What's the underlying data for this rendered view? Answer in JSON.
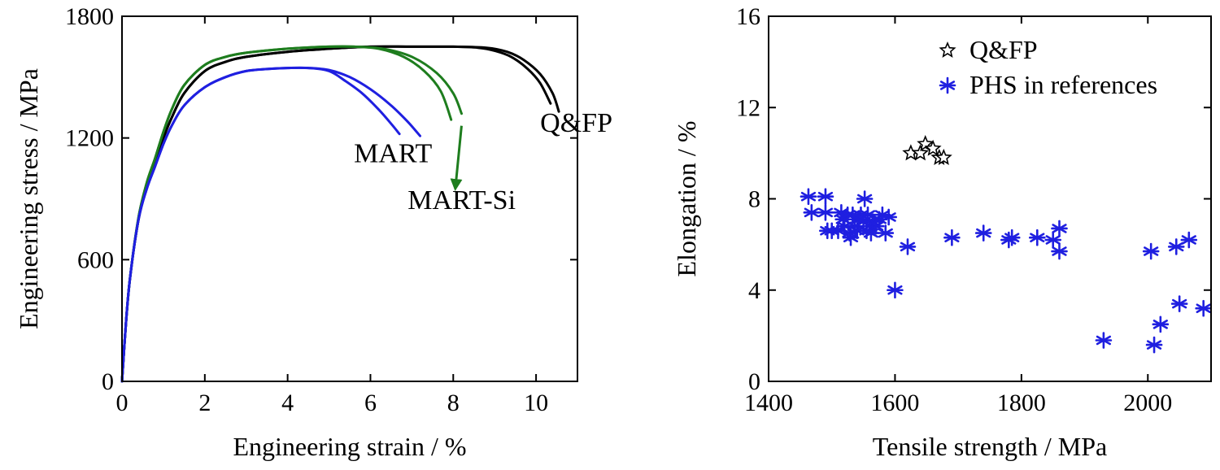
{
  "chart_data": [
    {
      "type": "line",
      "xlabel": "Engineering strain / %",
      "ylabel": "Engineering stress / MPa",
      "xlim": [
        0,
        11
      ],
      "ylim": [
        0,
        1800
      ],
      "x_ticks": [
        0,
        2,
        4,
        6,
        8,
        10
      ],
      "y_ticks": [
        0,
        600,
        1200,
        1800
      ],
      "grid": false,
      "legend": "none",
      "series": [
        {
          "name": "Q&FP",
          "color": "#000000",
          "curves": [
            {
              "x": [
                0,
                0.1,
                0.2,
                0.4,
                0.6,
                0.8,
                1.0,
                1.2,
                1.5,
                2.0,
                2.5,
                3.0,
                4.0,
                5.0,
                6.0,
                7.0,
                8.0,
                8.6,
                9.0,
                9.4,
                9.8,
                10.1,
                10.35
              ],
              "y": [
                0,
                300,
                520,
                800,
                960,
                1080,
                1200,
                1300,
                1420,
                1530,
                1575,
                1600,
                1625,
                1640,
                1650,
                1650,
                1650,
                1645,
                1630,
                1600,
                1540,
                1470,
                1370
              ]
            },
            {
              "x": [
                0,
                0.1,
                0.2,
                0.4,
                0.6,
                0.8,
                1.0,
                1.2,
                1.5,
                2.0,
                2.5,
                3.0,
                4.0,
                5.0,
                6.0,
                7.0,
                8.0,
                8.8,
                9.3,
                9.7,
                10.1,
                10.4,
                10.55
              ],
              "y": [
                0,
                300,
                520,
                800,
                960,
                1080,
                1200,
                1300,
                1420,
                1530,
                1575,
                1600,
                1625,
                1640,
                1650,
                1650,
                1650,
                1645,
                1625,
                1585,
                1515,
                1420,
                1330
              ]
            }
          ]
        },
        {
          "name": "MART-Si",
          "color": "#1e7d1e",
          "curves": [
            {
              "x": [
                0,
                0.1,
                0.2,
                0.4,
                0.6,
                0.8,
                1.0,
                1.2,
                1.5,
                2.0,
                2.5,
                3.0,
                4.0,
                5.0,
                5.6,
                6.2,
                6.8,
                7.3,
                7.7,
                7.95
              ],
              "y": [
                0,
                300,
                520,
                810,
                980,
                1100,
                1230,
                1340,
                1460,
                1560,
                1600,
                1620,
                1640,
                1650,
                1650,
                1640,
                1600,
                1530,
                1430,
                1290
              ]
            },
            {
              "x": [
                0,
                0.1,
                0.2,
                0.4,
                0.6,
                0.8,
                1.0,
                1.2,
                1.5,
                2.0,
                2.5,
                3.0,
                4.0,
                5.0,
                5.6,
                6.3,
                7.0,
                7.6,
                8.0,
                8.2
              ],
              "y": [
                0,
                300,
                520,
                810,
                980,
                1100,
                1230,
                1340,
                1460,
                1560,
                1600,
                1620,
                1640,
                1650,
                1650,
                1640,
                1600,
                1520,
                1420,
                1320
              ]
            }
          ]
        },
        {
          "name": "MART",
          "color": "#1f1fe0",
          "curves": [
            {
              "x": [
                0,
                0.1,
                0.2,
                0.4,
                0.6,
                0.8,
                1.0,
                1.2,
                1.5,
                2.0,
                2.5,
                3.0,
                3.5,
                4.0,
                4.5,
                5.0,
                5.4,
                5.8,
                6.2,
                6.5,
                6.7
              ],
              "y": [
                0,
                300,
                520,
                800,
                950,
                1060,
                1170,
                1260,
                1360,
                1450,
                1500,
                1530,
                1540,
                1545,
                1545,
                1530,
                1480,
                1420,
                1340,
                1270,
                1220
              ]
            },
            {
              "x": [
                0,
                0.1,
                0.2,
                0.4,
                0.6,
                0.8,
                1.0,
                1.2,
                1.5,
                2.0,
                2.5,
                3.0,
                3.5,
                4.0,
                4.5,
                5.0,
                5.5,
                6.0,
                6.5,
                6.9,
                7.2
              ],
              "y": [
                0,
                300,
                520,
                800,
                950,
                1060,
                1170,
                1260,
                1360,
                1450,
                1500,
                1530,
                1540,
                1545,
                1545,
                1535,
                1500,
                1440,
                1360,
                1280,
                1210
              ]
            }
          ]
        }
      ],
      "annotations": [
        {
          "text": "Q&FP",
          "x": 10.1,
          "y": 1230
        },
        {
          "text": "MART",
          "x": 5.6,
          "y": 1080
        },
        {
          "text": "MART-Si",
          "x": 6.9,
          "y": 850
        }
      ],
      "arrow": {
        "color": "#1e7d1e",
        "from": [
          8.2,
          1260
        ],
        "to": [
          8.05,
          950
        ]
      }
    },
    {
      "type": "scatter",
      "xlabel": "Tensile strength / MPa",
      "ylabel": "Elongation / %",
      "xlim": [
        1400,
        2100
      ],
      "ylim": [
        0,
        16
      ],
      "x_ticks": [
        1400,
        1600,
        1800,
        2000
      ],
      "y_ticks": [
        0,
        4,
        8,
        12,
        16
      ],
      "grid": false,
      "legend": "top-right",
      "series": [
        {
          "name": "Q&FP",
          "marker": "star",
          "color": "#000000",
          "x": [
            1625,
            1640,
            1648,
            1660,
            1670,
            1677
          ],
          "y": [
            10.0,
            10.0,
            10.4,
            10.2,
            9.8,
            9.8
          ]
        },
        {
          "name": "PHS in references",
          "marker": "asterisk",
          "color": "#1f1fe0",
          "x": [
            1463,
            1468,
            1490,
            1490,
            1493,
            1500,
            1510,
            1515,
            1518,
            1520,
            1525,
            1528,
            1530,
            1533,
            1536,
            1540,
            1543,
            1546,
            1550,
            1552,
            1555,
            1557,
            1560,
            1562,
            1565,
            1570,
            1575,
            1580,
            1585,
            1590,
            1600,
            1620,
            1690,
            1740,
            1780,
            1785,
            1825,
            1850,
            1860,
            1860,
            1930,
            2005,
            2010,
            2020,
            2045,
            2050,
            2065,
            2088
          ],
          "y": [
            8.1,
            7.4,
            8.1,
            7.4,
            6.6,
            6.6,
            6.6,
            7.4,
            7.1,
            6.8,
            7.3,
            6.5,
            6.3,
            7.3,
            6.8,
            6.6,
            7.1,
            7.3,
            7.0,
            8.0,
            6.6,
            7.3,
            6.8,
            6.5,
            7.0,
            6.8,
            7.1,
            7.3,
            6.5,
            7.2,
            4.0,
            5.9,
            6.3,
            6.5,
            6.2,
            6.3,
            6.3,
            6.2,
            6.7,
            5.7,
            1.8,
            5.7,
            1.6,
            2.5,
            5.9,
            3.4,
            6.2,
            3.2
          ]
        }
      ]
    }
  ]
}
